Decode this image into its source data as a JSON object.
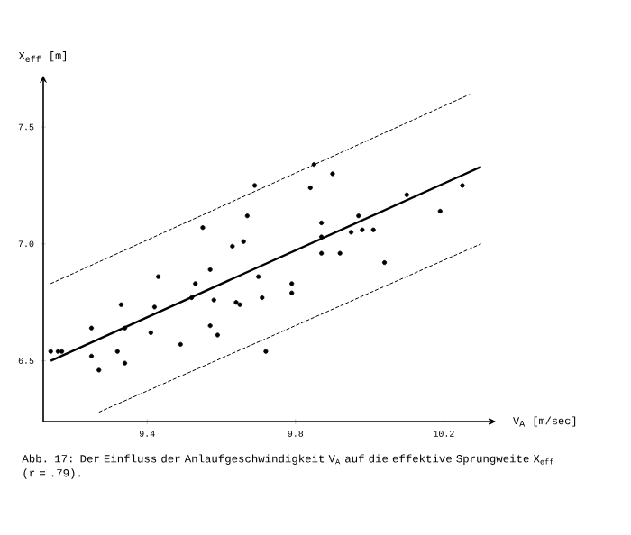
{
  "chart_data": {
    "type": "scatter",
    "xlabel": "V$_{A}$  [m/sec]",
    "ylabel": "X$_{eff}$ [m]",
    "xlim": [
      9.12,
      10.34
    ],
    "ylim": [
      6.24,
      7.72
    ],
    "xticks": [
      9.4,
      9.8,
      10.2
    ],
    "yticks": [
      6.5,
      {
        "value": 7.0,
        "label": "7.0"
      },
      7.5
    ],
    "annotations": [
      "Abb. 17: Der Einfluss der Anlaufgeschwindigkeit V$_{A}$ auf die effektive Sprungweite X$_{eff}$ (r = .79)."
    ],
    "series": [
      {
        "color": "#000000",
        "marker": "circle",
        "x": [
          9.55,
          9.63,
          9.66,
          9.67,
          9.69,
          9.84,
          9.85,
          9.9,
          9.87,
          9.87,
          9.87,
          9.92,
          9.95,
          9.97,
          9.98,
          10.01,
          10.04,
          10.1,
          10.19,
          10.25,
          9.43,
          9.53,
          9.57,
          9.7,
          9.79,
          9.79,
          9.33,
          9.42,
          9.52,
          9.58,
          9.64,
          9.65,
          9.71,
          9.25,
          9.34,
          9.41,
          9.57,
          9.59,
          9.49,
          9.25,
          9.32,
          9.14,
          9.16,
          9.17,
          9.27,
          9.34,
          9.72
        ],
        "values": [
          7.07,
          6.99,
          7.01,
          7.12,
          7.25,
          7.24,
          7.34,
          7.3,
          7.09,
          7.03,
          6.96,
          6.96,
          7.05,
          7.12,
          7.06,
          7.06,
          6.92,
          7.21,
          7.14,
          7.25,
          6.86,
          6.83,
          6.89,
          6.86,
          6.83,
          6.79,
          6.74,
          6.73,
          6.77,
          6.76,
          6.75,
          6.74,
          6.77,
          6.64,
          6.64,
          6.62,
          6.65,
          6.61,
          6.57,
          6.52,
          6.54,
          6.54,
          6.54,
          6.54,
          6.46,
          6.49,
          6.54
        ]
      },
      {
        "type": "line",
        "color": "#000000",
        "line_style": "solid",
        "marker": "none",
        "x": [
          9.14,
          10.3
        ],
        "values": [
          6.5,
          7.33
        ]
      },
      {
        "type": "line",
        "color": "#000000",
        "line_style": "dashed",
        "marker": "none",
        "x": [
          9.14,
          10.27
        ],
        "values": [
          6.83,
          7.64
        ]
      },
      {
        "type": "line",
        "color": "#000000",
        "line_style": "dashed",
        "marker": "none",
        "x": [
          9.27,
          10.3
        ],
        "values": [
          6.28,
          7.0
        ]
      }
    ]
  }
}
